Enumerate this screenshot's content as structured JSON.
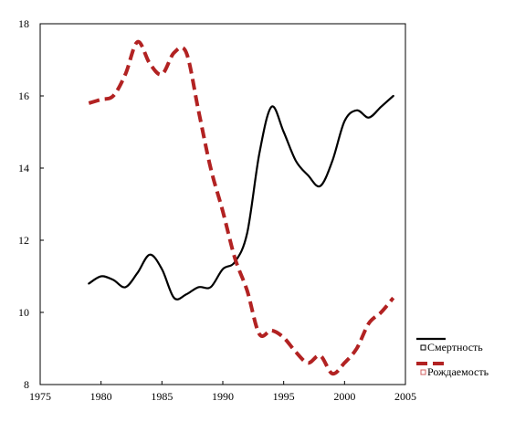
{
  "chart_data": {
    "type": "line",
    "title": "",
    "xlabel": "",
    "ylabel": "",
    "xlim": [
      1975,
      2005
    ],
    "ylim": [
      8,
      18
    ],
    "xticks": [
      1975,
      1980,
      1985,
      1990,
      1995,
      2000,
      2005
    ],
    "yticks": [
      8,
      10,
      12,
      14,
      16,
      18
    ],
    "grid": false,
    "legend_position": "bottom-right, outside plot",
    "series": [
      {
        "name": "Смертность",
        "color": "#000000",
        "style": "solid",
        "x": [
          1979,
          1980,
          1981,
          1982,
          1983,
          1984,
          1985,
          1986,
          1987,
          1988,
          1989,
          1990,
          1991,
          1992,
          1993,
          1994,
          1995,
          1996,
          1997,
          1998,
          1999,
          2000,
          2001,
          2002,
          2003,
          2004
        ],
        "y": [
          10.8,
          11.0,
          10.9,
          10.7,
          11.1,
          11.6,
          11.2,
          10.4,
          10.5,
          10.7,
          10.7,
          11.2,
          11.4,
          12.2,
          14.4,
          15.7,
          15.0,
          14.2,
          13.8,
          13.5,
          14.2,
          15.3,
          15.6,
          15.4,
          15.7,
          16.0
        ]
      },
      {
        "name": "Рождаемость",
        "color": "#b22222",
        "style": "dashed",
        "x": [
          1979,
          1980,
          1981,
          1982,
          1983,
          1984,
          1985,
          1986,
          1987,
          1988,
          1989,
          1990,
          1991,
          1992,
          1993,
          1994,
          1995,
          1996,
          1997,
          1998,
          1999,
          2000,
          2001,
          2002,
          2003,
          2004
        ],
        "y": [
          15.8,
          15.9,
          16.0,
          16.6,
          17.5,
          16.9,
          16.6,
          17.2,
          17.2,
          15.6,
          14.0,
          12.8,
          11.5,
          10.6,
          9.4,
          9.5,
          9.3,
          8.9,
          8.6,
          8.8,
          8.3,
          8.6,
          9.0,
          9.7,
          10.0,
          10.4
        ]
      }
    ]
  }
}
